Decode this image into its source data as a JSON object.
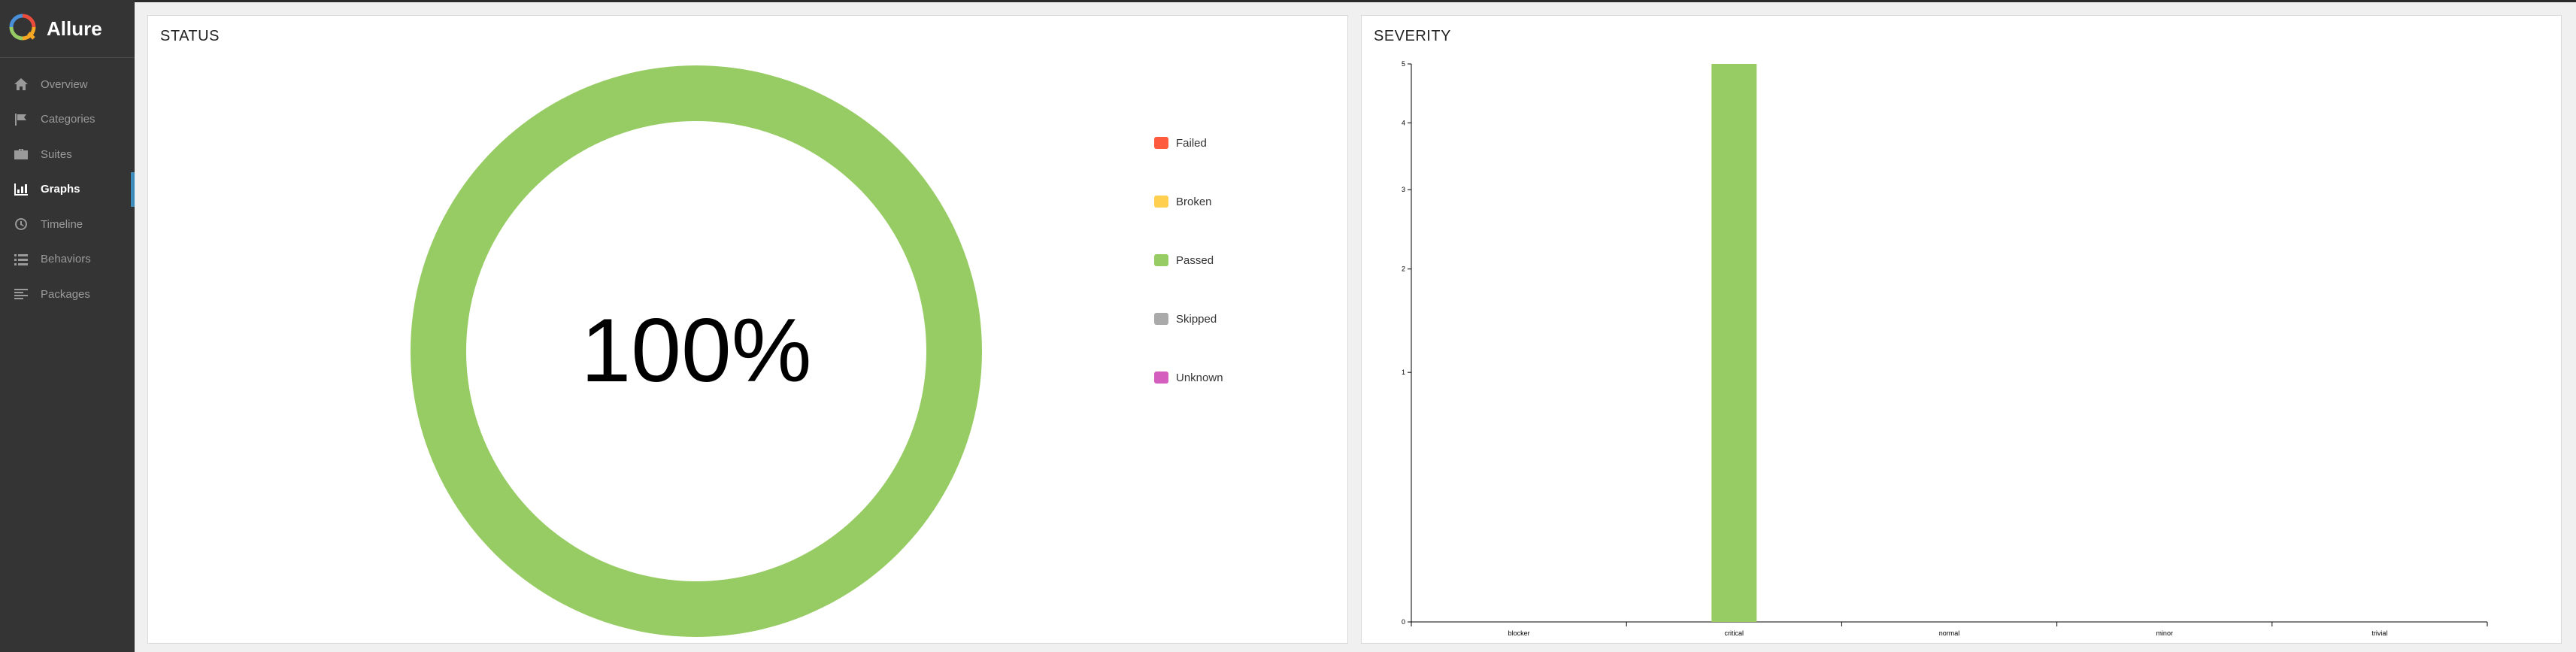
{
  "app": {
    "name": "Allure"
  },
  "sidebar": {
    "items": [
      {
        "label": "Overview",
        "icon": "home-icon",
        "active": false
      },
      {
        "label": "Categories",
        "icon": "flag-icon",
        "active": false
      },
      {
        "label": "Suites",
        "icon": "briefcase-icon",
        "active": false
      },
      {
        "label": "Graphs",
        "icon": "bar-chart-icon",
        "active": true
      },
      {
        "label": "Timeline",
        "icon": "clock-icon",
        "active": false
      },
      {
        "label": "Behaviors",
        "icon": "list-icon",
        "active": false
      },
      {
        "label": "Packages",
        "icon": "align-left-icon",
        "active": false
      }
    ]
  },
  "status_panel": {
    "title": "STATUS",
    "center_label": "100%",
    "legend": [
      {
        "label": "Failed",
        "color": "#fd5a3e"
      },
      {
        "label": "Broken",
        "color": "#ffd050"
      },
      {
        "label": "Passed",
        "color": "#97cc64"
      },
      {
        "label": "Skipped",
        "color": "#aaaaaa"
      },
      {
        "label": "Unknown",
        "color": "#d35ebe"
      }
    ]
  },
  "severity_panel": {
    "title": "SEVERITY"
  },
  "chart_data": [
    {
      "type": "pie",
      "title": "STATUS",
      "categories": [
        "Failed",
        "Broken",
        "Passed",
        "Skipped",
        "Unknown"
      ],
      "values": [
        0,
        0,
        5,
        0,
        0
      ],
      "colors": [
        "#fd5a3e",
        "#ffd050",
        "#97cc64",
        "#aaaaaa",
        "#d35ebe"
      ],
      "center_text": "100%",
      "legend": "right"
    },
    {
      "type": "bar",
      "title": "SEVERITY",
      "categories": [
        "blocker",
        "critical",
        "normal",
        "minor",
        "trivial"
      ],
      "values": [
        0,
        5,
        0,
        0,
        0
      ],
      "bar_color": "#97cc64",
      "yticks": [
        0,
        1,
        2,
        3,
        4,
        5
      ],
      "ylim": [
        0,
        5
      ],
      "yscale": "sqrt",
      "grid": false
    }
  ]
}
